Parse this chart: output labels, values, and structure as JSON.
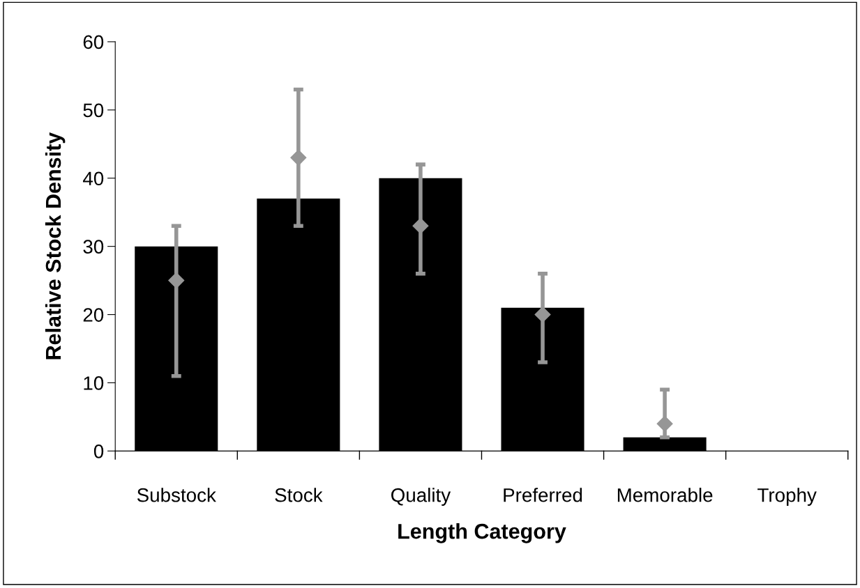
{
  "chart_data": {
    "type": "bar",
    "xlabel": "Length Category",
    "ylabel": "Relative Stock Density",
    "categories": [
      "Substock",
      "Stock",
      "Quality",
      "Preferred",
      "Memorable",
      "Trophy"
    ],
    "series": [
      {
        "color": "#000000",
        "values": [
          30,
          37,
          40,
          21,
          2,
          0
        ]
      },
      {
        "type": "scatter",
        "color": "#969696",
        "marker": "diamond",
        "values": [
          25,
          43,
          33,
          20,
          4,
          null
        ],
        "errors": [
          [
            11,
            33
          ],
          [
            33,
            53
          ],
          [
            26,
            42
          ],
          [
            13,
            26
          ],
          [
            2,
            9
          ],
          null
        ]
      }
    ],
    "ylim": [
      0,
      60
    ],
    "yticks": [
      0,
      10,
      20,
      30,
      40,
      50,
      60
    ],
    "grid": false,
    "legend": false
  }
}
